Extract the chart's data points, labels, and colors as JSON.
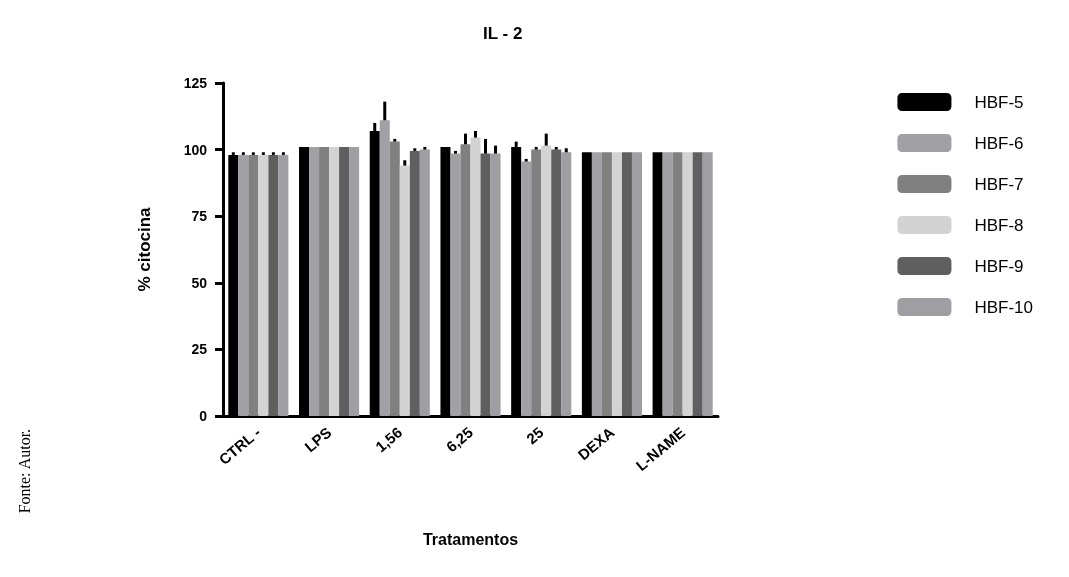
{
  "chart_data": {
    "type": "bar",
    "title": "IL - 2",
    "xlabel": "Tratamentos",
    "ylabel": "% citocina",
    "categories": [
      "CTRL -",
      "LPS",
      "1,56",
      "6,25",
      "25",
      "DEXA",
      "L-NAME"
    ],
    "series": [
      {
        "name": "HBF-5",
        "color": "#000000",
        "values": [
          98,
          101,
          107,
          101,
          101,
          99,
          99
        ],
        "errors": [
          [
            98,
            99
          ],
          null,
          [
            107,
            110
          ],
          null,
          [
            101,
            103
          ],
          null,
          null
        ]
      },
      {
        "name": "HBF-6",
        "color": "#a0a0a5",
        "values": [
          98,
          101,
          111,
          98.5,
          95.5,
          99,
          99
        ],
        "errors": [
          [
            98,
            99
          ],
          null,
          [
            111,
            118
          ],
          [
            98.5,
            99.5
          ],
          [
            95.5,
            96.5
          ],
          null,
          null
        ]
      },
      {
        "name": "HBF-7",
        "color": "#808080",
        "values": [
          98,
          101,
          103,
          102,
          100,
          99,
          99
        ],
        "errors": [
          [
            98,
            99
          ],
          null,
          [
            103,
            104
          ],
          [
            102,
            106
          ],
          [
            100,
            101
          ],
          null,
          null
        ]
      },
      {
        "name": "HBF-8",
        "color": "#d3d3d3",
        "values": [
          98,
          101,
          94,
          104.5,
          101.5,
          99,
          99
        ],
        "errors": [
          [
            98,
            99
          ],
          null,
          [
            94,
            96
          ],
          [
            104.5,
            107
          ],
          [
            101.5,
            106
          ],
          null,
          null
        ]
      },
      {
        "name": "HBF-9",
        "color": "#5f5f5f",
        "values": [
          98,
          101,
          99.5,
          98.5,
          100,
          99,
          99
        ],
        "errors": [
          [
            98,
            99
          ],
          null,
          [
            99.5,
            100.5
          ],
          [
            98.5,
            104
          ],
          [
            100,
            101
          ],
          null,
          null
        ]
      },
      {
        "name": "HBF-10",
        "color": "#9e9ea3",
        "values": [
          98,
          101,
          100,
          98.5,
          99,
          99,
          99
        ],
        "errors": [
          [
            98,
            99
          ],
          null,
          [
            100,
            101
          ],
          [
            98.5,
            101.5
          ],
          [
            99,
            100.5
          ],
          null,
          null
        ]
      }
    ],
    "ylim": [
      0,
      125
    ],
    "yticks": [
      0,
      25,
      50,
      75,
      100,
      125
    ],
    "grid": false,
    "legend": "right",
    "annotations": [
      "Fonte: Autor."
    ]
  }
}
